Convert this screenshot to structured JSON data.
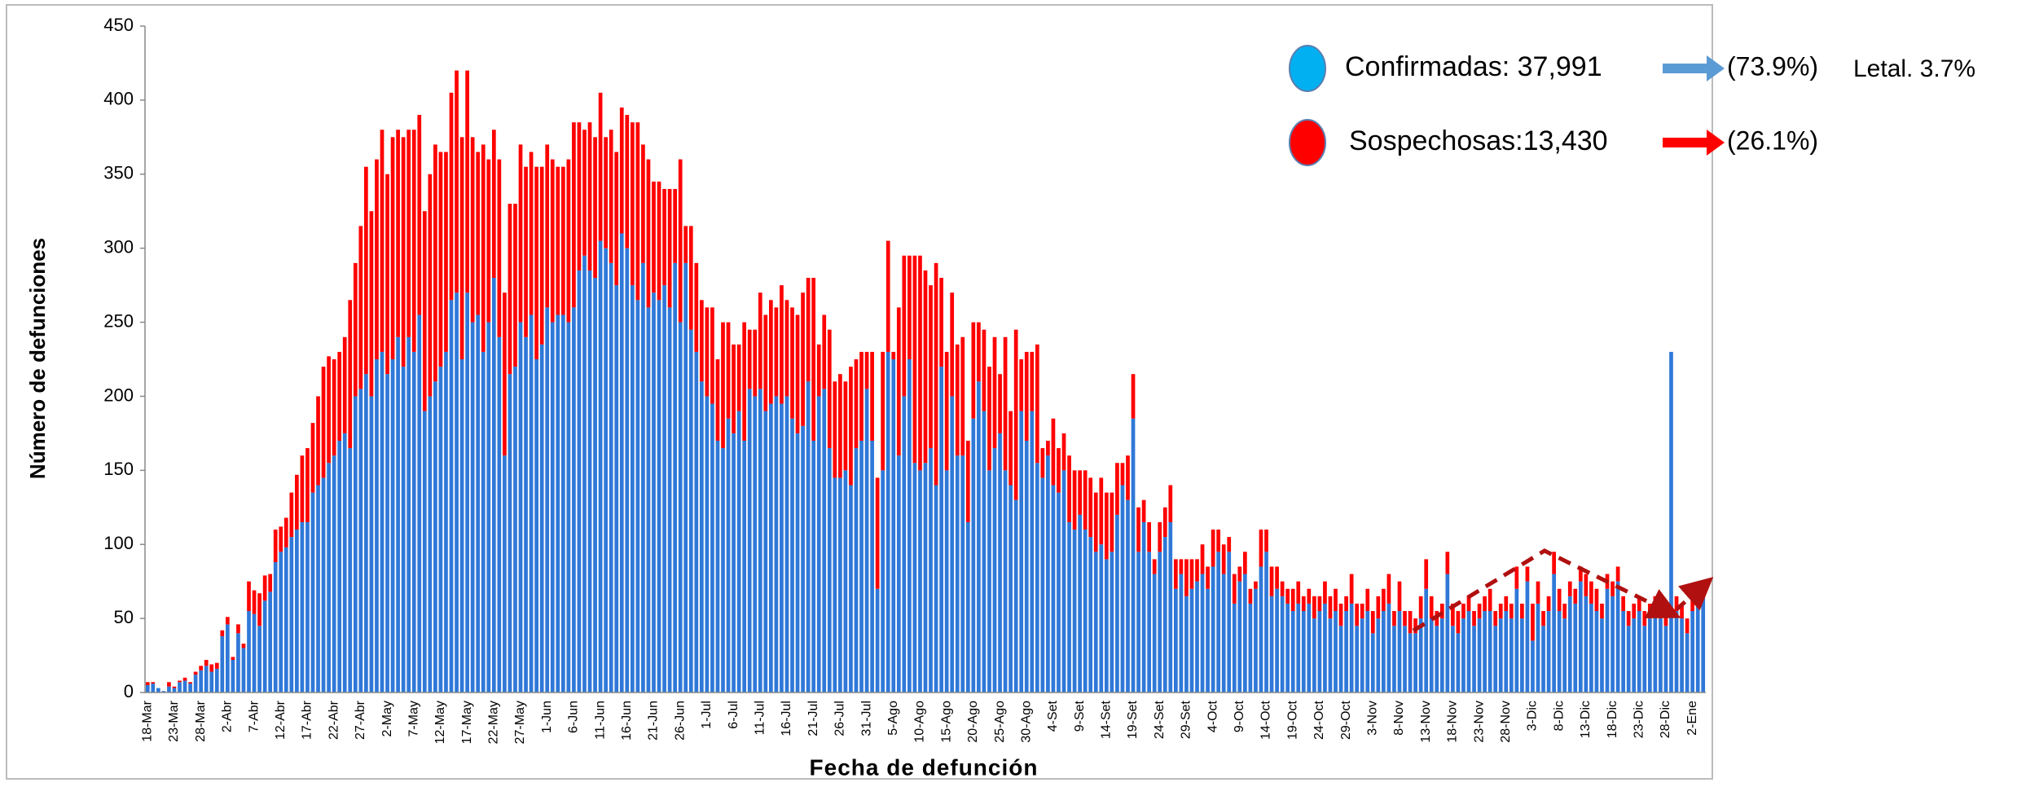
{
  "chart_data": {
    "type": "stacked_bar",
    "y_label": "Número de defunciones",
    "x_label": "Fecha de defunción",
    "annotations": [
      "(73.9%)",
      "Letal. 3.7%",
      "(26.1%)"
    ],
    "ylim": [
      0,
      450
    ],
    "yticks": [
      0,
      50,
      100,
      150,
      200,
      250,
      300,
      350,
      400,
      450
    ],
    "grid": false,
    "categories": [
      "18-Mar",
      null,
      null,
      null,
      null,
      "23-Mar",
      null,
      null,
      null,
      null,
      "28-Mar",
      null,
      null,
      null,
      null,
      "2-Abr",
      null,
      null,
      null,
      null,
      "7-Abr",
      null,
      null,
      null,
      null,
      "12-Abr",
      null,
      null,
      null,
      null,
      "17-Abr",
      null,
      null,
      null,
      null,
      "22-Abr",
      null,
      null,
      null,
      null,
      "27-Abr",
      null,
      null,
      null,
      null,
      "2-May",
      null,
      null,
      null,
      null,
      "7-May",
      null,
      null,
      null,
      null,
      "12-May",
      null,
      null,
      null,
      null,
      "17-May",
      null,
      null,
      null,
      null,
      "22-May",
      null,
      null,
      null,
      null,
      "27-May",
      null,
      null,
      null,
      null,
      "1-Jun",
      null,
      null,
      null,
      null,
      "6-Jun",
      null,
      null,
      null,
      null,
      "11-Jun",
      null,
      null,
      null,
      null,
      "16-Jun",
      null,
      null,
      null,
      null,
      "21-Jun",
      null,
      null,
      null,
      null,
      "26-Jun",
      null,
      null,
      null,
      null,
      "1-Jul",
      null,
      null,
      null,
      null,
      "6-Jul",
      null,
      null,
      null,
      null,
      "11-Jul",
      null,
      null,
      null,
      null,
      "16-Jul",
      null,
      null,
      null,
      null,
      "21-Jul",
      null,
      null,
      null,
      null,
      "26-Jul",
      null,
      null,
      null,
      null,
      "31-Jul",
      null,
      null,
      null,
      null,
      "5-Ago",
      null,
      null,
      null,
      null,
      "10-Ago",
      null,
      null,
      null,
      null,
      "15-Ago",
      null,
      null,
      null,
      null,
      "20-Ago",
      null,
      null,
      null,
      null,
      "25-Ago",
      null,
      null,
      null,
      null,
      "30-Ago",
      null,
      null,
      null,
      null,
      "4-Set",
      null,
      null,
      null,
      null,
      "9-Set",
      null,
      null,
      null,
      null,
      "14-Set",
      null,
      null,
      null,
      null,
      "19-Set",
      null,
      null,
      null,
      null,
      "24-Set",
      null,
      null,
      null,
      null,
      "29-Set",
      null,
      null,
      null,
      null,
      "4-Oct",
      null,
      null,
      null,
      null,
      "9-Oct",
      null,
      null,
      null,
      null,
      "14-Oct",
      null,
      null,
      null,
      null,
      "19-Oct",
      null,
      null,
      null,
      null,
      "24-Oct",
      null,
      null,
      null,
      null,
      "29-Oct",
      null,
      null,
      null,
      null,
      "3-Nov",
      null,
      null,
      null,
      null,
      "8-Nov",
      null,
      null,
      null,
      null,
      "13-Nov",
      null,
      null,
      null,
      null,
      "18-Nov",
      null,
      null,
      null,
      null,
      "23-Nov",
      null,
      null,
      null,
      null,
      "28-Nov",
      null,
      null,
      null,
      null,
      "3-Dic",
      null,
      null,
      null,
      null,
      "8-Dic",
      null,
      null,
      null,
      null,
      "13-Dic",
      null,
      null,
      null,
      null,
      "18-Dic",
      null,
      null,
      null,
      null,
      "23-Dic",
      null,
      null,
      null,
      null,
      "28-Dic",
      null,
      null,
      null,
      null,
      "2-Ene",
      null,
      null
    ],
    "series": [
      {
        "name": "Confirmadas: 37,991",
        "color": "#2f78d8",
        "values": [
          5,
          6,
          3,
          1,
          4,
          3,
          7,
          8,
          6,
          12,
          15,
          18,
          14,
          16,
          38,
          46,
          22,
          40,
          30,
          55,
          53,
          45,
          62,
          68,
          88,
          95,
          98,
          105,
          110,
          115,
          115,
          135,
          140,
          145,
          155,
          160,
          170,
          175,
          165,
          200,
          205,
          215,
          200,
          225,
          230,
          215,
          225,
          240,
          220,
          240,
          230,
          255,
          190,
          200,
          210,
          220,
          230,
          265,
          270,
          225,
          270,
          250,
          255,
          230,
          250,
          280,
          240,
          160,
          215,
          220,
          250,
          240,
          255,
          225,
          235,
          260,
          250,
          255,
          255,
          250,
          260,
          285,
          295,
          285,
          280,
          305,
          300,
          290,
          275,
          310,
          300,
          275,
          265,
          290,
          260,
          270,
          265,
          275,
          260,
          290,
          250,
          290,
          245,
          230,
          210,
          200,
          195,
          170,
          165,
          185,
          175,
          190,
          170,
          205,
          200,
          205,
          190,
          195,
          200,
          195,
          200,
          185,
          175,
          180,
          210,
          170,
          200,
          205,
          165,
          145,
          145,
          150,
          140,
          165,
          170,
          205,
          170,
          70,
          150,
          230,
          225,
          160,
          200,
          225,
          155,
          150,
          155,
          165,
          140,
          220,
          150,
          200,
          160,
          160,
          115,
          185,
          210,
          190,
          150,
          165,
          175,
          150,
          140,
          130,
          190,
          170,
          190,
          155,
          145,
          160,
          140,
          135,
          150,
          115,
          110,
          120,
          110,
          105,
          95,
          100,
          90,
          95,
          120,
          140,
          130,
          185,
          95,
          115,
          95,
          80,
          95,
          105,
          115,
          70,
          80,
          65,
          70,
          75,
          80,
          70,
          85,
          95,
          80,
          95,
          60,
          75,
          80,
          60,
          70,
          85,
          95,
          65,
          70,
          65,
          60,
          55,
          60,
          55,
          60,
          50,
          55,
          60,
          50,
          55,
          45,
          55,
          60,
          45,
          50,
          55,
          40,
          50,
          55,
          60,
          45,
          55,
          45,
          40,
          40,
          50,
          70,
          50,
          45,
          50,
          80,
          45,
          40,
          50,
          55,
          45,
          50,
          55,
          55,
          45,
          50,
          55,
          50,
          70,
          50,
          75,
          35,
          60,
          45,
          55,
          80,
          55,
          50,
          65,
          60,
          75,
          65,
          60,
          55,
          50,
          70,
          65,
          75,
          55,
          45,
          50,
          55,
          45,
          50,
          55,
          50,
          45,
          230,
          55,
          50,
          40,
          55,
          60,
          65
        ]
      },
      {
        "name": "Sospechosas:13,430",
        "color": "#ff0000",
        "values": [
          2,
          1,
          0,
          0,
          3,
          1,
          1,
          2,
          1,
          2,
          3,
          4,
          5,
          4,
          4,
          5,
          2,
          6,
          3,
          20,
          16,
          22,
          17,
          12,
          22,
          17,
          20,
          30,
          37,
          45,
          50,
          47,
          60,
          75,
          72,
          65,
          60,
          65,
          100,
          90,
          110,
          140,
          125,
          135,
          150,
          135,
          150,
          140,
          155,
          140,
          150,
          135,
          135,
          150,
          160,
          145,
          135,
          140,
          150,
          150,
          150,
          125,
          110,
          140,
          110,
          100,
          120,
          110,
          115,
          110,
          120,
          115,
          110,
          130,
          120,
          110,
          110,
          100,
          100,
          110,
          125,
          100,
          85,
          100,
          95,
          100,
          75,
          90,
          90,
          85,
          90,
          110,
          120,
          80,
          100,
          75,
          80,
          65,
          80,
          50,
          110,
          25,
          70,
          60,
          55,
          60,
          65,
          55,
          85,
          65,
          60,
          45,
          80,
          40,
          45,
          65,
          65,
          70,
          60,
          80,
          65,
          75,
          80,
          90,
          70,
          110,
          35,
          50,
          80,
          65,
          70,
          60,
          80,
          60,
          60,
          25,
          60,
          75,
          80,
          75,
          5,
          100,
          95,
          70,
          140,
          145,
          130,
          110,
          150,
          60,
          80,
          70,
          75,
          80,
          55,
          65,
          40,
          55,
          70,
          75,
          40,
          90,
          50,
          115,
          35,
          60,
          40,
          80,
          20,
          10,
          45,
          30,
          25,
          45,
          40,
          30,
          40,
          40,
          40,
          45,
          45,
          40,
          35,
          15,
          30,
          30,
          30,
          15,
          20,
          10,
          20,
          20,
          25,
          20,
          10,
          25,
          20,
          15,
          20,
          15,
          25,
          15,
          20,
          10,
          20,
          10,
          15,
          10,
          5,
          25,
          15,
          20,
          15,
          10,
          10,
          15,
          15,
          10,
          10,
          15,
          10,
          15,
          15,
          15,
          15,
          10,
          20,
          15,
          10,
          15,
          15,
          15,
          15,
          20,
          10,
          20,
          10,
          15,
          10,
          15,
          20,
          15,
          10,
          10,
          15,
          15,
          15,
          10,
          10,
          10,
          10,
          10,
          15,
          10,
          10,
          10,
          10,
          15,
          10,
          10,
          25,
          15,
          10,
          10,
          15,
          15,
          10,
          10,
          10,
          10,
          15,
          15,
          15,
          10,
          10,
          10,
          10,
          10,
          10,
          10,
          10,
          10,
          10,
          10,
          10,
          15,
          0,
          10,
          10,
          10,
          10,
          10,
          5
        ]
      }
    ]
  }
}
